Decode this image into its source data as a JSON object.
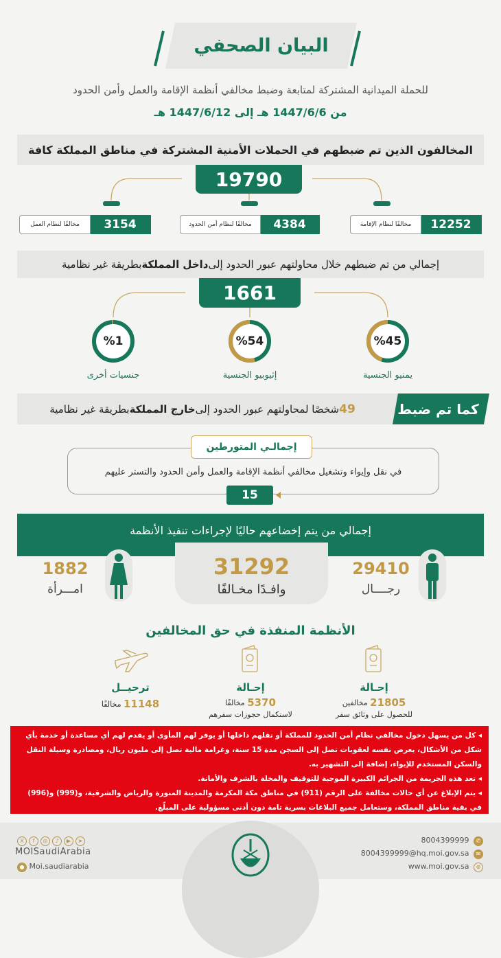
{
  "colors": {
    "green": "#17775a",
    "gold": "#c29a46",
    "red": "#e30613",
    "band": "#e6e6e5"
  },
  "header": {
    "title": "البيان الصحفي",
    "subtitle": "للحملة الميدانية المشتركة لمتابعة وضبط مخالفي أنظمة الإقامة والعمل وأمن الحدود",
    "dates": "من 1447/6/6 هـ إلى 1447/6/12 هـ"
  },
  "violators": {
    "heading": "المخالفون الذين تم ضبطهم في الحملات الأمنية المشتركة في مناطق المملكة كافة",
    "total": "19790",
    "items": [
      {
        "value": "12252",
        "label": "مخالفًا لنظام الإقامة"
      },
      {
        "value": "4384",
        "label": "مخالفًا لنظام أمن الحدود"
      },
      {
        "value": "3154",
        "label": "مخالفًا لنظام العمل"
      }
    ]
  },
  "inbound": {
    "heading_pre": "إجمالي من تم ضبطهم خلال محاولتهم عبور الحدود إلى ",
    "heading_bold": "داخل المملكة",
    "heading_post": " بطريقة غير نظامية",
    "total": "1661",
    "nationalities": [
      {
        "percent": 45,
        "text": "%45",
        "label": "يمنيو الجنسية"
      },
      {
        "percent": 54,
        "text": "%54",
        "label": "إثيوبيو الجنسية"
      },
      {
        "percent": 1,
        "text": "%1",
        "label": "جنسيات أخرى"
      }
    ]
  },
  "outbound": {
    "tag": "كما تم ضبط",
    "count": "49",
    "text_pre": " شخصًا لمحاولتهم عبور الحدود إلى ",
    "text_bold": "خارج المملكة",
    "text_post": " بطريقة غير نظامية"
  },
  "involved": {
    "title": "إجمالـي المتورطين",
    "text": "في نقل وإيواء وتشغيل مخالفي أنظمة الإقامة والعمل وأمن الحدود والتستر عليهم",
    "value": "15"
  },
  "current": {
    "heading": "إجمالي من يتم إخضاعهم حاليًا لإجراءات تنفيذ الأنظمة",
    "total": "31292",
    "total_label": "وافـدًا مخـالفًا",
    "men": "29410",
    "men_label": "رجــــال",
    "women": "1882",
    "women_label": "امـــرأة"
  },
  "measures": {
    "heading": "الأنظمة المنفذة في حق المخالفين",
    "items": [
      {
        "icon": "passport-icon",
        "title": "إحـالة",
        "value": "21805",
        "unit": "مخالفين",
        "note": "للحصول على وثائق سفر"
      },
      {
        "icon": "passport-icon",
        "title": "إحـالة",
        "value": "5370",
        "unit": "مخالفًا",
        "note": "لاستكمال حجوزات سفرهم"
      },
      {
        "icon": "airplane-icon",
        "title": "ترحيــل",
        "value": "11148",
        "unit": "مخالفًا",
        "note": ""
      }
    ]
  },
  "warning": [
    "كل من يسهل دخول مخالفي نظام أمن الحدود للمملكة أو نقلهم داخلها أو يوفر لهم المأوى أو يقدم لهم أي مساعدة أو خدمة بأي شكل من الأشكال، يعرض نفسه لعقوبات تصل إلى السجن مدة 15 سنة، وغرامة مالية تصل إلى مليون ريال، ومصادرة وسيلة النقل والسكن المستخدم للإيواء، إضافة إلى التشهير به.",
    "تعد هذه الجريمة من الجرائم الكبيرة الموجبة للتوقيف والمخلة بالشرف والأمانة.",
    "يتم الإبلاغ عن أي حالات مخالفة على الرقم (911) في مناطق مكة المكرمة والمدينة المنورة والرياض والشرقية، و(999) و(996) في بقية مناطق المملكة، وستعامل جميع البلاغات بسرية تامة دون أدنى مسؤولية على المبلّغ."
  ],
  "footer": {
    "handle": "MOISaudiArabia",
    "snapchat": "Moi.saudiarabia",
    "phone": "8004399999",
    "email": "8004399999@hq.moi.gov.sa",
    "website": "www.moi.gov.sa",
    "logo": "moi-emblem"
  }
}
